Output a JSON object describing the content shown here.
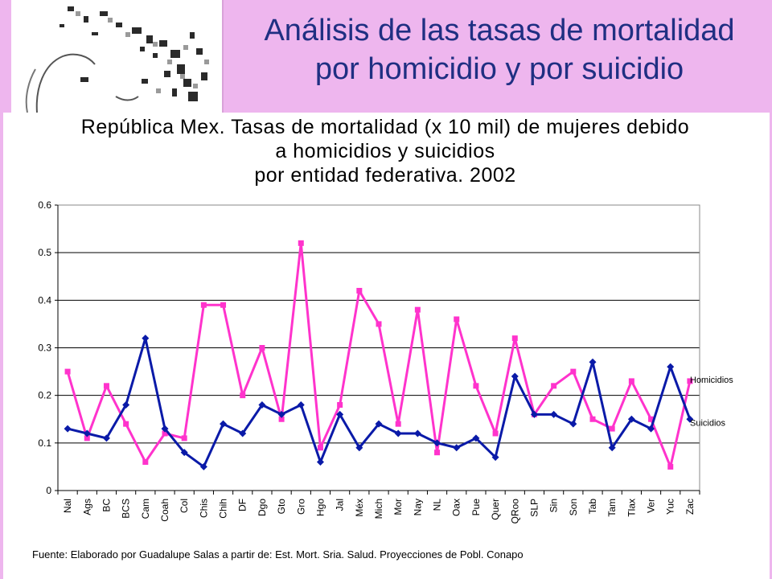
{
  "header": {
    "title_line1": "Análisis de las tasas de mortalidad",
    "title_line2": "por homicidio y por suicidio"
  },
  "chart_data": {
    "type": "line",
    "title_lines": [
      "República Mex. Tasas de mortalidad (x 10 mil) de mujeres debido",
      "a homicidios y suicidios",
      "por entidad federativa. 2002"
    ],
    "xlabel": "",
    "ylabel": "",
    "ylim": [
      0,
      0.6
    ],
    "yticks": [
      "0",
      "0.1",
      "0.2",
      "0.3",
      "0.4",
      "0.5",
      "0.6"
    ],
    "grid": true,
    "legend": "inline-right",
    "categories": [
      "Nal",
      "Ags",
      "BC",
      "BCS",
      "Cam",
      "Coah",
      "Col",
      "Chis",
      "Chih",
      "DF",
      "Dgo",
      "Gto",
      "Gro",
      "Hgo",
      "Jal",
      "Méx",
      "Mich",
      "Mor",
      "Nay",
      "NL",
      "Oax",
      "Pue",
      "Quer",
      "QRoo",
      "SLP",
      "Sin",
      "Son",
      "Tab",
      "Tam",
      "Tlax",
      "Ver",
      "Yuc",
      "Zac"
    ],
    "series": [
      {
        "name": "Homicidios",
        "color": "#ff33cc",
        "marker": "square",
        "values": [
          0.25,
          0.11,
          0.22,
          0.14,
          0.06,
          0.12,
          0.11,
          0.39,
          0.39,
          0.2,
          0.3,
          0.15,
          0.52,
          0.09,
          0.18,
          0.42,
          0.35,
          0.14,
          0.38,
          0.08,
          0.36,
          0.22,
          0.12,
          0.32,
          0.16,
          0.22,
          0.25,
          0.15,
          0.13,
          0.23,
          0.15,
          0.05,
          0.23
        ]
      },
      {
        "name": "Suicidios",
        "color": "#0a1aa8",
        "marker": "diamond",
        "values": [
          0.13,
          0.12,
          0.11,
          0.18,
          0.32,
          0.13,
          0.08,
          0.05,
          0.14,
          0.12,
          0.18,
          0.16,
          0.18,
          0.06,
          0.16,
          0.09,
          0.14,
          0.12,
          0.12,
          0.1,
          0.09,
          0.11,
          0.07,
          0.24,
          0.16,
          0.16,
          0.14,
          0.27,
          0.09,
          0.15,
          0.13,
          0.26,
          0.15
        ]
      }
    ]
  },
  "source": "Fuente: Elaborado por Guadalupe Salas a partir de: Est. Mort. Sria. Salud. Proyecciones de Pobl. Conapo"
}
